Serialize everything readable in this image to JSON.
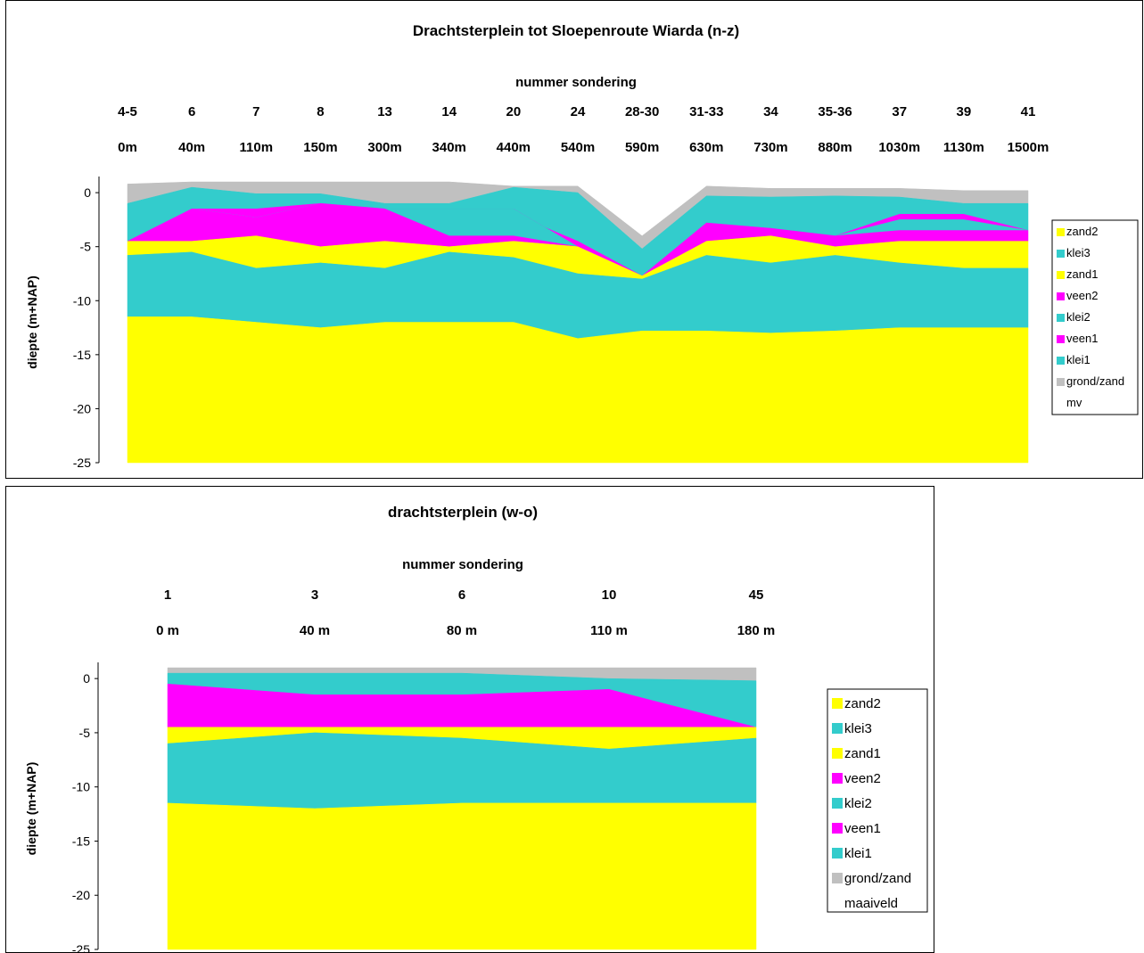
{
  "chart_data": [
    {
      "type": "area",
      "title": "Drachtsterplein tot Sloepenroute Wiarda (n-z)",
      "header_label": "nummer sondering",
      "sondering": [
        "4-5",
        "6",
        "7",
        "8",
        "13",
        "14",
        "20",
        "24",
        "28-30",
        "31-33",
        "34",
        "35-36",
        "37",
        "39",
        "41"
      ],
      "distances": [
        "0m",
        "40m",
        "110m",
        "150m",
        "300m",
        "340m",
        "440m",
        "540m",
        "590m",
        "630m",
        "730m",
        "880m",
        "1030m",
        "1130m",
        "1500m"
      ],
      "ylabel": "diepte (m+NAP)",
      "ylim": [
        -25,
        1
      ],
      "yticks": [
        "0",
        "-5",
        "-10",
        "-15",
        "-20",
        "-25"
      ],
      "ytick_values": [
        0,
        -5,
        -10,
        -15,
        -20,
        -25
      ],
      "legend": [
        "zand2",
        "klei3",
        "zand1",
        "veen2",
        "klei2",
        "veen1",
        "klei1",
        "grond/zand",
        "mv"
      ],
      "colors": {
        "zand2": "#ffff00",
        "klei3": "#33cccc",
        "zand1": "#ffff00",
        "veen2": "#ff00ff",
        "klei2": "#33cccc",
        "veen1": "#ff00ff",
        "klei1": "#33cccc",
        "grond/zand": "#c0c0c0"
      },
      "boundaries": {
        "mv": [
          0.8,
          1.0,
          1.0,
          1.0,
          1.1,
          1.0,
          0.6,
          0.6,
          -4.0,
          0.6,
          0.4,
          0.4,
          0.4,
          0.2,
          0.2
        ],
        "grond": [
          -1.0,
          0.5,
          -0.1,
          -0.1,
          -1.0,
          -1.0,
          0.5,
          0.0,
          -5.2,
          -0.3,
          -0.4,
          -0.3,
          -0.4,
          -1.0,
          -1.0
        ],
        "klei1": [
          -4.5,
          -1.5,
          -1.5,
          -1.0,
          -1.5,
          -3.0,
          -2.0,
          -4.5,
          -7.7,
          -3.0,
          -3.3,
          -4.0,
          -2.0,
          -2.0,
          -3.5
        ],
        "veen1": [
          -4.5,
          -1.5,
          -2.3,
          -1.0,
          -1.5,
          -1.5,
          -1.5,
          -5.0,
          -7.7,
          -3.5,
          -3.3,
          -4.0,
          -2.5,
          -2.5,
          -3.5
        ],
        "klei2": [
          -4.5,
          -1.5,
          -2.3,
          -1.0,
          -1.5,
          -4.0,
          -4.0,
          -5.0,
          -7.7,
          -2.8,
          -3.3,
          -4.0,
          -3.5,
          -3.5,
          -3.5
        ],
        "veen2": [
          -4.5,
          -4.5,
          -4.0,
          -5.0,
          -4.5,
          -5.0,
          -4.5,
          -5.0,
          -7.7,
          -4.5,
          -4.0,
          -5.0,
          -4.5,
          -4.5,
          -4.5
        ],
        "zand1": [
          -5.8,
          -5.5,
          -7.0,
          -6.5,
          -7.0,
          -5.5,
          -6.0,
          -7.5,
          -8.0,
          -5.8,
          -6.5,
          -5.8,
          -6.5,
          -7.0,
          -7.0
        ],
        "klei3": [
          -11.5,
          -11.5,
          -12.0,
          -12.5,
          -12.0,
          -12.0,
          -12.0,
          -13.5,
          -12.8,
          -12.8,
          -13.0,
          -12.8,
          -12.5,
          -12.5,
          -12.5
        ],
        "zand2": [
          -25,
          -25,
          -25,
          -25,
          -25,
          -25,
          -25,
          -25,
          -25,
          -25,
          -25,
          -25,
          -25,
          -25,
          -25
        ]
      }
    },
    {
      "type": "area",
      "title": "drachtsterplein (w-o)",
      "header_label": "nummer sondering",
      "sondering": [
        "1",
        "3",
        "6",
        "10",
        "45"
      ],
      "distances": [
        "0 m",
        "40 m",
        "80 m",
        "110 m",
        "180 m"
      ],
      "ylabel": "diepte (m+NAP)",
      "ylim": [
        -25,
        1
      ],
      "yticks": [
        "0",
        "-5",
        "-10",
        "-15",
        "-20",
        "-25"
      ],
      "ytick_values": [
        0,
        -5,
        -10,
        -15,
        -20,
        -25
      ],
      "legend": [
        "zand2",
        "klei3",
        "zand1",
        "veen2",
        "klei2",
        "veen1",
        "klei1",
        "grond/zand",
        "maaiveld"
      ],
      "colors": {
        "zand2": "#ffff00",
        "klei3": "#33cccc",
        "zand1": "#ffff00",
        "veen2": "#ff00ff",
        "klei2": "#33cccc",
        "veen1": "#ff00ff",
        "klei1": "#33cccc",
        "grond/zand": "#c0c0c0"
      },
      "boundaries": {
        "mv": [
          1.0,
          1.0,
          1.0,
          1.0,
          1.0
        ],
        "grond": [
          0.5,
          0.5,
          0.5,
          0.0,
          -0.2
        ],
        "klei1": [
          -0.5,
          -1.5,
          -1.5,
          -1.0,
          -4.5
        ],
        "veen1": [
          -4.5,
          -4.5,
          -4.5,
          -4.5,
          -4.5
        ],
        "zand1": [
          -6.0,
          -5.0,
          -5.5,
          -6.5,
          -5.5
        ],
        "klei3": [
          -11.5,
          -12.0,
          -11.5,
          -11.5,
          -11.5
        ],
        "zand2": [
          -25,
          -25,
          -25,
          -25,
          -25
        ]
      }
    }
  ]
}
